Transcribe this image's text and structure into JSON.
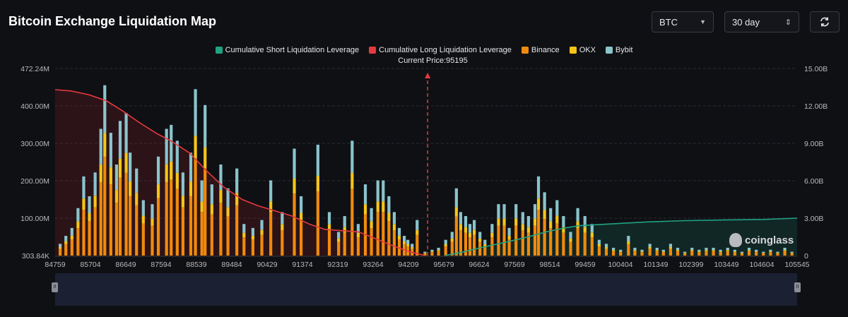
{
  "header": {
    "title": "Bitcoin Exchange Liquidation Map",
    "coin_select": "BTC",
    "period_select": "30 day"
  },
  "legend": [
    {
      "label": "Cumulative Short Liquidation Leverage",
      "color": "#1fa383"
    },
    {
      "label": "Cumulative Long Liquidation Leverage",
      "color": "#e6393f"
    },
    {
      "label": "Binance",
      "color": "#f08a0c"
    },
    {
      "label": "OKX",
      "color": "#f5c518"
    },
    {
      "label": "Bybit",
      "color": "#8ac4cc"
    }
  ],
  "current_price_label": "Current Price:95195",
  "watermark": "coinglass",
  "colors": {
    "binance": "#f08a0c",
    "okx": "#f5c518",
    "bybit": "#8ac4cc",
    "long": "#e6393f",
    "short": "#1fa383",
    "grid": "#2b2d35",
    "price_line": "#e6393f"
  },
  "chart_data": {
    "type": "bar",
    "left_axis": {
      "ticks": [
        "472.24M",
        "400.00M",
        "300.00M",
        "200.00M",
        "100.00M",
        "303.84K"
      ],
      "min": 0.30384,
      "max": 472.24,
      "unit": "M"
    },
    "right_axis": {
      "ticks": [
        "15.00B",
        "12.00B",
        "9.00B",
        "6.00B",
        "3.00B",
        "0"
      ],
      "min": 0,
      "max": 15,
      "unit": "B"
    },
    "x_ticks": [
      "84759",
      "85704",
      "86649",
      "87594",
      "88539",
      "89484",
      "90429",
      "91374",
      "92319",
      "93264",
      "94209",
      "95679",
      "96624",
      "97569",
      "98514",
      "99459",
      "100404",
      "101349",
      "102399",
      "103449",
      "104604",
      "105545"
    ],
    "x_range": [
      84759,
      105545
    ],
    "current_price": 95195,
    "bybit_total": [
      {
        "x": 84900,
        "v": 30
      },
      {
        "x": 85060,
        "v": 50
      },
      {
        "x": 85230,
        "v": 70
      },
      {
        "x": 85400,
        "v": 120
      },
      {
        "x": 85560,
        "v": 200
      },
      {
        "x": 85720,
        "v": 150
      },
      {
        "x": 85880,
        "v": 210
      },
      {
        "x": 86040,
        "v": 320
      },
      {
        "x": 86150,
        "v": 430
      },
      {
        "x": 86320,
        "v": 310
      },
      {
        "x": 86480,
        "v": 230
      },
      {
        "x": 86580,
        "v": 340
      },
      {
        "x": 86750,
        "v": 360
      },
      {
        "x": 86860,
        "v": 260
      },
      {
        "x": 87040,
        "v": 220
      },
      {
        "x": 87230,
        "v": 140
      },
      {
        "x": 87480,
        "v": 130
      },
      {
        "x": 87650,
        "v": 250
      },
      {
        "x": 87880,
        "v": 320
      },
      {
        "x": 88010,
        "v": 330
      },
      {
        "x": 88180,
        "v": 290
      },
      {
        "x": 88340,
        "v": 210
      },
      {
        "x": 88560,
        "v": 260
      },
      {
        "x": 88690,
        "v": 420
      },
      {
        "x": 88870,
        "v": 190
      },
      {
        "x": 88960,
        "v": 380
      },
      {
        "x": 89150,
        "v": 180
      },
      {
        "x": 89400,
        "v": 230
      },
      {
        "x": 89600,
        "v": 170
      },
      {
        "x": 89850,
        "v": 220
      },
      {
        "x": 90050,
        "v": 80
      },
      {
        "x": 90300,
        "v": 70
      },
      {
        "x": 90550,
        "v": 90
      },
      {
        "x": 90800,
        "v": 190
      },
      {
        "x": 91120,
        "v": 110
      },
      {
        "x": 91460,
        "v": 270
      },
      {
        "x": 91650,
        "v": 150
      },
      {
        "x": 92120,
        "v": 280
      },
      {
        "x": 92440,
        "v": 110
      },
      {
        "x": 92700,
        "v": 60
      },
      {
        "x": 92870,
        "v": 100
      },
      {
        "x": 93080,
        "v": 290
      },
      {
        "x": 93250,
        "v": 80
      },
      {
        "x": 93450,
        "v": 180
      },
      {
        "x": 93620,
        "v": 120
      },
      {
        "x": 93800,
        "v": 190
      },
      {
        "x": 93950,
        "v": 190
      },
      {
        "x": 94110,
        "v": 150
      },
      {
        "x": 94260,
        "v": 110
      },
      {
        "x": 94400,
        "v": 70
      },
      {
        "x": 94540,
        "v": 50
      },
      {
        "x": 94640,
        "v": 40
      },
      {
        "x": 94760,
        "v": 30
      },
      {
        "x": 94900,
        "v": 90
      },
      {
        "x": 95120,
        "v": 10
      },
      {
        "x": 95320,
        "v": 15
      },
      {
        "x": 95500,
        "v": 20
      },
      {
        "x": 95700,
        "v": 40
      },
      {
        "x": 95880,
        "v": 60
      },
      {
        "x": 96000,
        "v": 170
      },
      {
        "x": 96120,
        "v": 110
      },
      {
        "x": 96260,
        "v": 100
      },
      {
        "x": 96380,
        "v": 80
      },
      {
        "x": 96500,
        "v": 90
      },
      {
        "x": 96660,
        "v": 60
      },
      {
        "x": 96800,
        "v": 40
      },
      {
        "x": 97000,
        "v": 80
      },
      {
        "x": 97180,
        "v": 130
      },
      {
        "x": 97340,
        "v": 130
      },
      {
        "x": 97480,
        "v": 70
      },
      {
        "x": 97670,
        "v": 130
      },
      {
        "x": 97860,
        "v": 110
      },
      {
        "x": 98020,
        "v": 100
      },
      {
        "x": 98200,
        "v": 130
      },
      {
        "x": 98300,
        "v": 200
      },
      {
        "x": 98470,
        "v": 160
      },
      {
        "x": 98640,
        "v": 120
      },
      {
        "x": 98820,
        "v": 140
      },
      {
        "x": 99000,
        "v": 100
      },
      {
        "x": 99200,
        "v": 60
      },
      {
        "x": 99400,
        "v": 120
      },
      {
        "x": 99600,
        "v": 100
      },
      {
        "x": 99800,
        "v": 80
      },
      {
        "x": 100000,
        "v": 40
      },
      {
        "x": 100200,
        "v": 30
      },
      {
        "x": 100400,
        "v": 20
      },
      {
        "x": 100600,
        "v": 15
      },
      {
        "x": 100820,
        "v": 50
      },
      {
        "x": 101000,
        "v": 20
      },
      {
        "x": 101200,
        "v": 15
      },
      {
        "x": 101420,
        "v": 30
      },
      {
        "x": 101620,
        "v": 20
      },
      {
        "x": 101800,
        "v": 15
      },
      {
        "x": 102000,
        "v": 30
      },
      {
        "x": 102200,
        "v": 20
      },
      {
        "x": 102400,
        "v": 10
      },
      {
        "x": 102600,
        "v": 20
      },
      {
        "x": 102800,
        "v": 15
      },
      {
        "x": 103000,
        "v": 20
      },
      {
        "x": 103200,
        "v": 20
      },
      {
        "x": 103400,
        "v": 15
      },
      {
        "x": 103600,
        "v": 20
      },
      {
        "x": 103800,
        "v": 15
      },
      {
        "x": 104000,
        "v": 10
      },
      {
        "x": 104200,
        "v": 20
      },
      {
        "x": 104400,
        "v": 15
      },
      {
        "x": 104600,
        "v": 10
      },
      {
        "x": 104800,
        "v": 15
      },
      {
        "x": 105000,
        "v": 10
      },
      {
        "x": 105200,
        "v": 20
      },
      {
        "x": 105400,
        "v": 10
      }
    ],
    "cumulative_long": [
      {
        "x": 84759,
        "v": 13.3
      },
      {
        "x": 85200,
        "v": 13.2
      },
      {
        "x": 85700,
        "v": 12.9
      },
      {
        "x": 86200,
        "v": 12.4
      },
      {
        "x": 86650,
        "v": 11.6
      },
      {
        "x": 87100,
        "v": 10.7
      },
      {
        "x": 87600,
        "v": 9.8
      },
      {
        "x": 88000,
        "v": 9.2
      },
      {
        "x": 88540,
        "v": 8.2
      },
      {
        "x": 89000,
        "v": 6.8
      },
      {
        "x": 89480,
        "v": 5.5
      },
      {
        "x": 90000,
        "v": 4.5
      },
      {
        "x": 90430,
        "v": 4.0
      },
      {
        "x": 90900,
        "v": 3.6
      },
      {
        "x": 91370,
        "v": 3.2
      },
      {
        "x": 91900,
        "v": 2.5
      },
      {
        "x": 92320,
        "v": 2.1
      },
      {
        "x": 92800,
        "v": 2.0
      },
      {
        "x": 93260,
        "v": 1.9
      },
      {
        "x": 93700,
        "v": 1.4
      },
      {
        "x": 94210,
        "v": 0.8
      },
      {
        "x": 94700,
        "v": 0.3
      },
      {
        "x": 95100,
        "v": 0.02
      }
    ],
    "cumulative_short": [
      {
        "x": 95679,
        "v": 0.0
      },
      {
        "x": 96200,
        "v": 0.3
      },
      {
        "x": 96624,
        "v": 0.6
      },
      {
        "x": 97100,
        "v": 0.9
      },
      {
        "x": 97570,
        "v": 1.2
      },
      {
        "x": 98000,
        "v": 1.5
      },
      {
        "x": 98514,
        "v": 1.9
      },
      {
        "x": 99000,
        "v": 2.2
      },
      {
        "x": 99459,
        "v": 2.4
      },
      {
        "x": 100404,
        "v": 2.55
      },
      {
        "x": 101349,
        "v": 2.7
      },
      {
        "x": 102399,
        "v": 2.8
      },
      {
        "x": 103449,
        "v": 2.85
      },
      {
        "x": 104604,
        "v": 2.9
      },
      {
        "x": 105545,
        "v": 3.0
      }
    ]
  }
}
